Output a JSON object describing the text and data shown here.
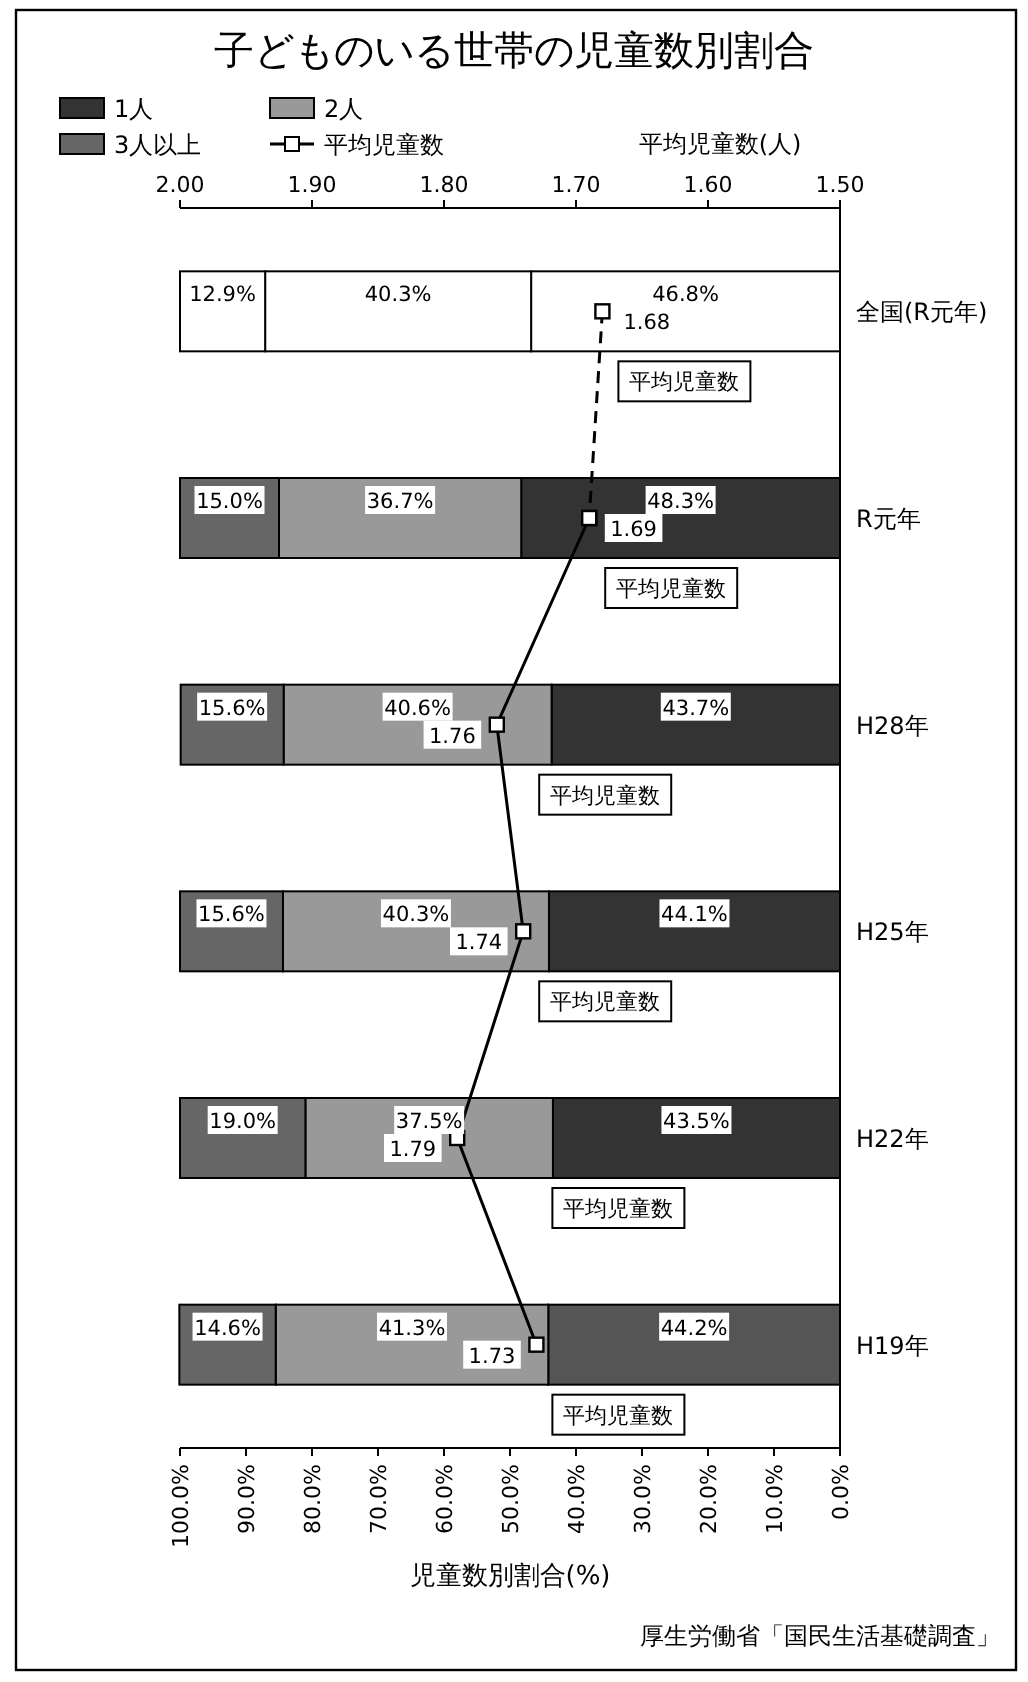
{
  "chart_data": {
    "type": "bar",
    "orientation": "horizontal",
    "title": "子どものいる世帯の児童数別割合",
    "xlabel": "児童数別割合(%)",
    "x2label": "平均児童数(人)",
    "categories": [
      "全国(R元年)",
      "R元年",
      "H28年",
      "H25年",
      "H22年",
      "H19年"
    ],
    "stacked": true,
    "legend": "top left",
    "marker": "square",
    "xlim": [
      100,
      0
    ],
    "xticks": [
      {
        "value": 100,
        "label": "100.0%"
      },
      {
        "value": 90,
        "label": "90.0%"
      },
      {
        "value": 80,
        "label": "80.0%"
      },
      {
        "value": 70,
        "label": "70.0%"
      },
      {
        "value": 60,
        "label": "60.0%"
      },
      {
        "value": 50,
        "label": "50.0%"
      },
      {
        "value": 40,
        "label": "40.0%"
      },
      {
        "value": 30,
        "label": "30.0%"
      },
      {
        "value": 20,
        "label": "20.0%"
      },
      {
        "value": 10,
        "label": "10.0%"
      },
      {
        "value": 0,
        "label": "0.0%"
      }
    ],
    "x2lim": [
      2.0,
      1.5
    ],
    "x2ticks": [
      {
        "value": 2.0,
        "label": "2.00"
      },
      {
        "value": 1.9,
        "label": "1.90"
      },
      {
        "value": 1.8,
        "label": "1.80"
      },
      {
        "value": 1.7,
        "label": "1.70"
      },
      {
        "value": 1.6,
        "label": "1.60"
      },
      {
        "value": 1.5,
        "label": "1.50"
      }
    ],
    "series": [
      {
        "name": "1人",
        "color": "#333333",
        "colors": [
          "#ffffff",
          "#333333",
          "#333333",
          "#333333",
          "#333333",
          "#555555"
        ],
        "values": [
          46.8,
          48.3,
          43.7,
          44.1,
          43.5,
          44.2
        ],
        "value_labels": [
          "46.8%",
          "48.3%",
          "43.7%",
          "44.1%",
          "43.5%",
          "44.2%"
        ]
      },
      {
        "name": "2人",
        "color": "#999999",
        "colors": [
          "#ffffff",
          "#999999",
          "#999999",
          "#999999",
          "#999999",
          "#999999"
        ],
        "values": [
          40.3,
          36.7,
          40.6,
          40.3,
          37.5,
          41.3
        ],
        "value_labels": [
          "40.3%",
          "36.7%",
          "40.6%",
          "40.3%",
          "37.5%",
          "41.3%"
        ]
      },
      {
        "name": "3人以上",
        "color": "#666666",
        "colors": [
          "#ffffff",
          "#666666",
          "#666666",
          "#666666",
          "#666666",
          "#666666"
        ],
        "values": [
          12.9,
          15.0,
          15.6,
          15.6,
          19.0,
          14.6
        ],
        "value_labels": [
          "12.9%",
          "15.0%",
          "15.6%",
          "15.6%",
          "19.0%",
          "14.6%"
        ]
      },
      {
        "name": "平均児童数",
        "type": "line",
        "axis": "x2",
        "color": "#000000",
        "line_style": "solid",
        "values": [
          null,
          1.69,
          1.76,
          1.74,
          1.79,
          1.73
        ],
        "value_labels": [
          null,
          "1.69",
          "1.76",
          "1.74",
          "1.79",
          "1.73"
        ]
      },
      {
        "type": "line",
        "axis": "x2",
        "color": "#000000",
        "line_style": "dashed",
        "values": [
          1.68,
          1.69,
          null,
          null,
          null,
          null
        ],
        "value_labels": [
          "1.68",
          null,
          null,
          null,
          null,
          null
        ]
      }
    ],
    "annotations": [
      "平均児童数",
      "平均児童数",
      "平均児童数",
      "平均児童数",
      "平均児童数",
      "平均児童数",
      "厚生労働省「国民生活基礎調査」"
    ]
  }
}
